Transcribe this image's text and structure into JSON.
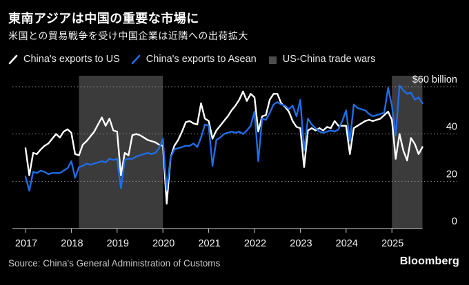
{
  "header": {
    "title": "東南アジアは中国の重要な市場に",
    "subtitle": "米国との貿易戦争を受け中国企業は近隣への出荷拡大"
  },
  "legend": [
    {
      "label": "China's exports to US",
      "swatch": "line",
      "color": "#ffffff",
      "icon_name": "us-line-legend-icon"
    },
    {
      "label": "China's exports to Asean",
      "swatch": "line",
      "color": "#1f6de6",
      "icon_name": "asean-line-legend-icon"
    },
    {
      "label": "US-China trade wars",
      "swatch": "square",
      "color": "#4c4c4c",
      "icon_name": "trade-war-band-legend-icon"
    }
  ],
  "footer": {
    "source": "Source: China's General Administration of Customs",
    "brand": "Bloomberg"
  },
  "chart_data": {
    "type": "line",
    "x_unit": "month",
    "x_start": "2017-01",
    "x_end": "2025-09",
    "x_tick_labels": [
      "2017",
      "2018",
      "2019",
      "2020",
      "2021",
      "2022",
      "2023",
      "2024",
      "2025"
    ],
    "ylim": [
      0,
      60
    ],
    "y_ticks": [
      0,
      20,
      40,
      60
    ],
    "y_top_label": "$60 billion",
    "unit": "USD billion per month",
    "grid": "horizontal-dotted",
    "legend_position": "top",
    "band_color": "#3b3b3b",
    "bands": [
      {
        "label": "US-China trade wars",
        "from": "2018-03",
        "to": "2020-01"
      },
      {
        "label": "US-China trade wars",
        "from": "2025-01",
        "to": "2025-09"
      }
    ],
    "series": [
      {
        "name": "China's exports to US",
        "color": "#ffffff",
        "values": [
          34,
          22.5,
          32,
          31.5,
          33.5,
          35,
          36,
          38,
          40,
          38.5,
          41,
          42,
          40.5,
          31.5,
          31,
          35.5,
          37,
          39,
          41,
          44,
          47,
          43.5,
          46.5,
          41.5,
          41,
          22.5,
          32,
          31,
          39.5,
          40,
          39.5,
          38.5,
          37.5,
          37,
          36.5,
          35.5,
          35,
          10.5,
          30,
          35,
          37.5,
          41,
          45,
          45.5,
          44.5,
          44,
          53,
          46.5,
          45.5,
          38,
          41.5,
          43.5,
          45.5,
          47.5,
          50,
          52,
          54.5,
          58,
          54,
          57,
          55.5,
          41,
          47.5,
          48,
          54.5,
          57,
          57,
          53,
          51.5,
          49.5,
          45.5,
          43,
          42.5,
          26,
          41.5,
          42.5,
          41.5,
          42.5,
          41.5,
          43,
          42.5,
          45.5,
          43.5,
          43.5,
          43.5,
          31.5,
          42.5,
          43.5,
          44.5,
          45.5,
          46,
          45.5,
          46,
          46.5,
          48,
          49.5,
          46,
          29.5,
          40,
          33,
          28.8,
          38.3,
          35.8,
          31.5,
          34.5
        ]
      },
      {
        "name": "China's exports to Asean",
        "color": "#1f6de6",
        "values": [
          22,
          16,
          24,
          23.5,
          24.5,
          24,
          23,
          23.5,
          23.5,
          23.5,
          24.5,
          25.5,
          28.5,
          21.5,
          26,
          26.5,
          27.5,
          27,
          27.5,
          28,
          28.5,
          28,
          29.5,
          29,
          29.5,
          17,
          29,
          29.5,
          29.5,
          30.5,
          31,
          31.5,
          32,
          31.5,
          32,
          34,
          38,
          16.5,
          30,
          33.5,
          34,
          34.5,
          35,
          35,
          36,
          34.5,
          38.5,
          44,
          43.5,
          26.5,
          37.5,
          38.5,
          40,
          40.5,
          41,
          40.5,
          41,
          40,
          41.5,
          43.5,
          49.5,
          28.5,
          46.5,
          46,
          49,
          52.5,
          53.5,
          52.5,
          52,
          50.5,
          52,
          47.5,
          54.5,
          33,
          46.5,
          44,
          42.5,
          41,
          40.5,
          41,
          41.5,
          41,
          42,
          45.5,
          50,
          37,
          52.5,
          51,
          50.5,
          50,
          48.5,
          47.5,
          48,
          48.5,
          49,
          59.5,
          52,
          39.5,
          60.5,
          58.5,
          57,
          57.5,
          54.5,
          55.5,
          53
        ]
      }
    ]
  }
}
